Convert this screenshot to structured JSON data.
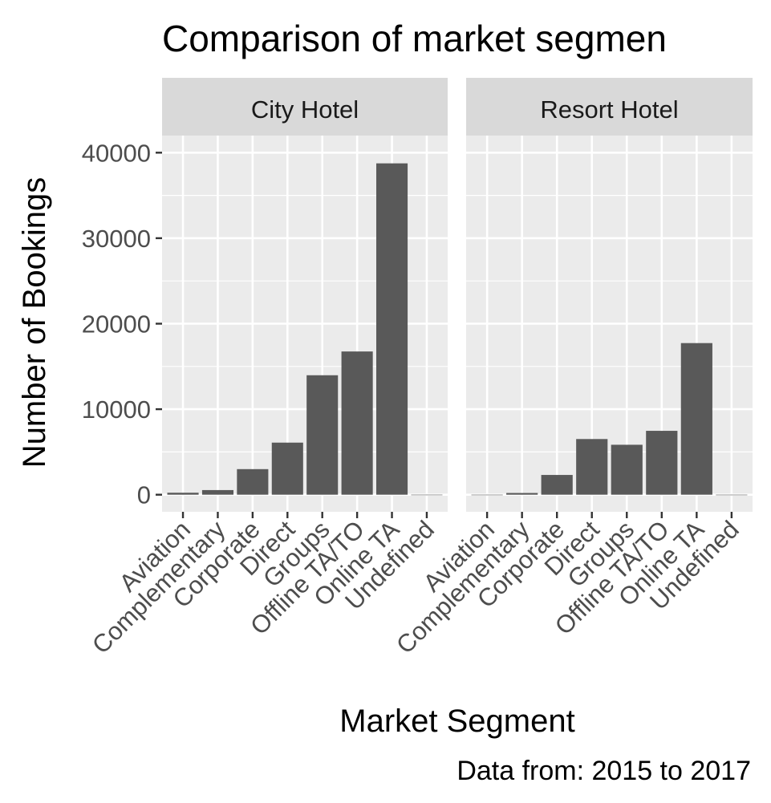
{
  "chart_data": {
    "type": "bar",
    "title": "Comparison of market segmen",
    "xlabel": "Market Segment",
    "ylabel": "Number of Bookings",
    "caption": "Data from: 2015 to 2017",
    "categories": [
      "Aviation",
      "Complementary",
      "Corporate",
      "Direct",
      "Groups",
      "Offline TA/TO",
      "Online TA",
      "Undefined"
    ],
    "ylim": [
      -2000,
      42000
    ],
    "yticks": [
      0,
      10000,
      20000,
      30000,
      40000
    ],
    "ytick_labels": [
      "0",
      "10000",
      "20000",
      "30000",
      "40000"
    ],
    "grid": true,
    "bar_color": "#595959",
    "panel_background": "#ebebeb",
    "strip_background": "#d9d9d9",
    "panels": [
      {
        "name": "City Hotel",
        "values": [
          230,
          540,
          2990,
          6090,
          13970,
          16750,
          38750,
          2
        ]
      },
      {
        "name": "Resort Hotel",
        "values": [
          0,
          200,
          2310,
          6510,
          5840,
          7470,
          17730,
          0
        ]
      }
    ]
  }
}
